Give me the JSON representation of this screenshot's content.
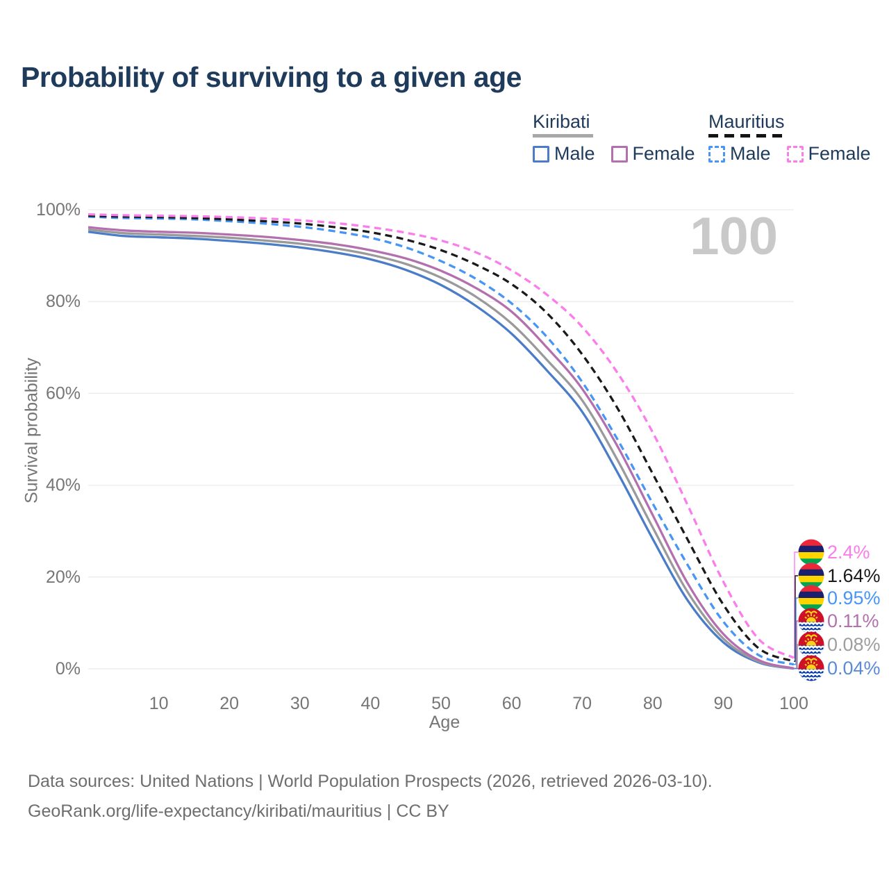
{
  "page": {
    "title": "Probability of surviving to a given age",
    "watermark": "100"
  },
  "legend": {
    "groups": [
      {
        "country": "Kiribati",
        "line_style": "solid",
        "swatch_color": "#a8a8a8",
        "items": [
          {
            "label": "Male",
            "color": "#4a7cc7"
          },
          {
            "label": "Female",
            "color": "#b470ae"
          }
        ]
      },
      {
        "country": "Mauritius",
        "line_style": "dashed",
        "swatch_color": "#141414",
        "items": [
          {
            "label": "Male",
            "color": "#4795f5"
          },
          {
            "label": "Female",
            "color": "#fb7deb"
          }
        ]
      }
    ]
  },
  "chart_data": {
    "type": "line",
    "title": "Probability of surviving to a given age",
    "xlabel": "Age",
    "ylabel": "Survival probability",
    "xlim": [
      0,
      100
    ],
    "ylim": [
      0,
      100
    ],
    "x_ticks": [
      10,
      20,
      30,
      40,
      50,
      60,
      70,
      80,
      90,
      100
    ],
    "y_ticks": [
      0,
      20,
      40,
      60,
      80,
      100
    ],
    "y_tick_suffix": "%",
    "grid": true,
    "legend_position": "top-right",
    "x": [
      0,
      5,
      10,
      15,
      20,
      25,
      30,
      35,
      40,
      45,
      50,
      55,
      60,
      65,
      70,
      75,
      80,
      85,
      90,
      95,
      100
    ],
    "series": [
      {
        "id": "kiribati-male",
        "country": "Kiribati",
        "sex": "Male",
        "color": "#4a7cc7",
        "label_color": "#5b8bd8",
        "dashed": false,
        "flag": "kiribati",
        "end_label": "0.04%",
        "values": [
          95.2,
          94.3,
          94.0,
          93.7,
          93.2,
          92.6,
          91.8,
          90.7,
          89.2,
          86.9,
          83.6,
          79.0,
          73.0,
          65.0,
          56.0,
          42.8,
          28.3,
          14.8,
          5.8,
          1.4,
          0.04
        ]
      },
      {
        "id": "kiribati-all",
        "country": "Kiribati",
        "sex": "All",
        "color": "#9a9a9a",
        "label_color": "#9e9e9e",
        "dashed": false,
        "flag": "kiribati",
        "end_label": "0.08%",
        "values": [
          95.7,
          94.9,
          94.6,
          94.3,
          93.9,
          93.3,
          92.6,
          91.6,
          90.2,
          88.2,
          85.2,
          81.0,
          75.2,
          67.3,
          58.5,
          45.5,
          30.8,
          16.6,
          6.6,
          1.6,
          0.08
        ]
      },
      {
        "id": "kiribati-female",
        "country": "Kiribati",
        "sex": "Female",
        "color": "#b470ae",
        "label_color": "#b470ae",
        "dashed": false,
        "flag": "kiribati",
        "end_label": "0.11%",
        "values": [
          96.2,
          95.5,
          95.2,
          95.0,
          94.6,
          94.1,
          93.4,
          92.5,
          91.2,
          89.4,
          86.7,
          82.9,
          77.8,
          70.0,
          61.0,
          48.5,
          33.5,
          18.5,
          7.6,
          1.9,
          0.11
        ]
      },
      {
        "id": "mauritius-male",
        "country": "Mauritius",
        "sex": "Male",
        "color": "#4795f5",
        "label_color": "#4795f5",
        "dashed": true,
        "flag": "mauritius",
        "end_label": "0.95%",
        "values": [
          98.5,
          98.2,
          98.1,
          97.9,
          97.5,
          97.0,
          96.3,
          95.3,
          93.9,
          91.8,
          88.8,
          84.9,
          79.6,
          72.3,
          62.5,
          50.0,
          36.0,
          22.5,
          10.3,
          3.0,
          0.95
        ]
      },
      {
        "id": "mauritius-all",
        "country": "Mauritius",
        "sex": "All",
        "color": "#1a1a1a",
        "label_color": "#1a1a1a",
        "dashed": true,
        "flag": "mauritius",
        "end_label": "1.64%",
        "values": [
          98.7,
          98.5,
          98.4,
          98.2,
          97.9,
          97.5,
          97.0,
          96.2,
          95.1,
          93.5,
          91.2,
          88.0,
          83.8,
          77.5,
          68.5,
          56.8,
          42.5,
          28.0,
          14.0,
          4.5,
          1.64
        ]
      },
      {
        "id": "mauritius-female",
        "country": "Mauritius",
        "sex": "Female",
        "color": "#fb7deb",
        "label_color": "#fb7deb",
        "dashed": true,
        "flag": "mauritius",
        "end_label": "2.4%",
        "values": [
          99.0,
          98.8,
          98.7,
          98.6,
          98.4,
          98.1,
          97.7,
          97.1,
          96.2,
          95.0,
          93.3,
          90.7,
          86.8,
          81.5,
          74.5,
          64.5,
          51.5,
          35.5,
          19.0,
          6.5,
          2.4
        ]
      }
    ]
  },
  "footer": {
    "line1": "Data sources: United Nations | World Population Prospects (2026, retrieved 2026-03-10).",
    "line2": "GeoRank.org/life-expectancy/kiribati/mauritius | CC BY"
  }
}
